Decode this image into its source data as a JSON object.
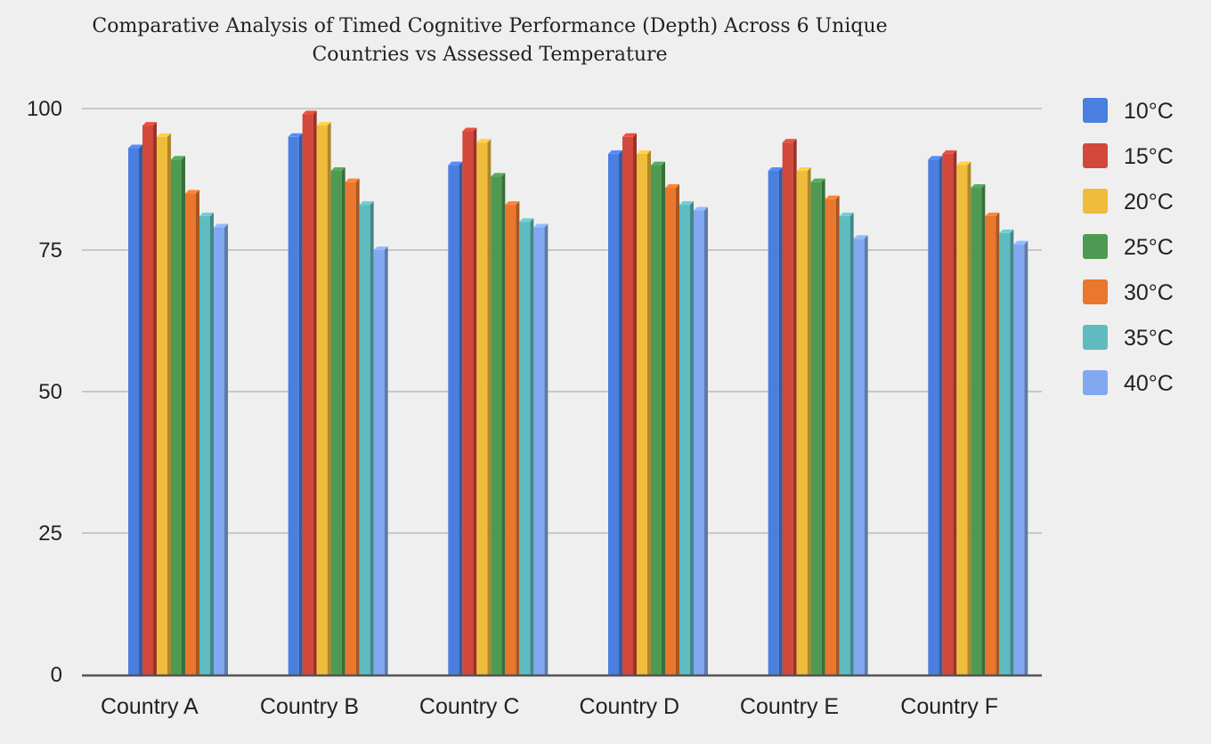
{
  "chart_data": {
    "type": "bar",
    "title_lines": [
      "Comparative Analysis of Timed Cognitive Performance (Depth) Across 6 Unique",
      "Countries vs Assessed Temperature"
    ],
    "xlabel": "",
    "ylabel": "",
    "ylim": [
      0,
      100
    ],
    "yticks": [
      0,
      25,
      50,
      75,
      100
    ],
    "grid": true,
    "legend_position": "right",
    "categories": [
      "Country A",
      "Country B",
      "Country C",
      "Country D",
      "Country E",
      "Country F"
    ],
    "series": [
      {
        "name": "10°C",
        "color": "#4a7fe0",
        "values": [
          93,
          95,
          90,
          92,
          89,
          91
        ]
      },
      {
        "name": "15°C",
        "color": "#d2483a",
        "values": [
          97,
          99,
          96,
          95,
          94,
          92
        ]
      },
      {
        "name": "20°C",
        "color": "#efbc3c",
        "values": [
          95,
          97,
          94,
          92,
          89,
          90
        ]
      },
      {
        "name": "25°C",
        "color": "#4e9a52",
        "values": [
          91,
          89,
          88,
          90,
          87,
          86
        ]
      },
      {
        "name": "30°C",
        "color": "#e9772e",
        "values": [
          85,
          87,
          83,
          86,
          84,
          81
        ]
      },
      {
        "name": "35°C",
        "color": "#5fbbbf",
        "values": [
          81,
          83,
          80,
          83,
          81,
          78
        ]
      },
      {
        "name": "40°C",
        "color": "#82a8ef",
        "values": [
          79,
          75,
          79,
          82,
          77,
          76
        ]
      }
    ]
  }
}
